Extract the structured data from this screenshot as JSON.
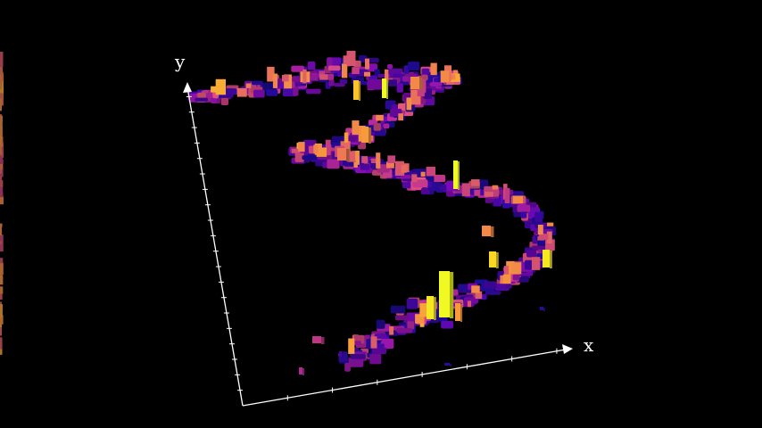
{
  "axes": {
    "x_label": "x",
    "y_label": "y",
    "color": "#ffffff"
  },
  "colormap": {
    "name": "plasma",
    "stops": [
      "#1a0a8c",
      "#4c06a6",
      "#7a0aa8",
      "#a62098",
      "#cc4678",
      "#e9705a",
      "#f89a3c",
      "#fccf25",
      "#f0f921"
    ]
  },
  "background": "#000000"
}
